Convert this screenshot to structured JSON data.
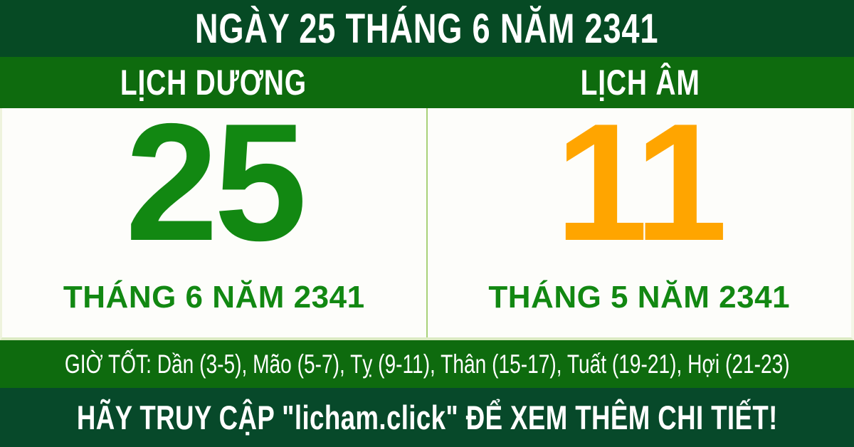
{
  "banner": {
    "title": "NGÀY 25 THÁNG 6 NĂM 2341"
  },
  "calendars": {
    "solar": {
      "header": "LỊCH DƯƠNG",
      "day": "25",
      "month_year": "THÁNG 6 NĂM 2341"
    },
    "lunar": {
      "header": "LỊCH ÂM",
      "day": "11",
      "month_year": "THÁNG 5 NĂM 2341"
    }
  },
  "good_hours": {
    "text": "GIỜ TỐT: Dần (3-5), Mão (5-7), Tỵ (9-11), Thân (15-17), Tuất (19-21), Hợi (21-23)"
  },
  "footer": {
    "text": "HÃY TRUY CẬP \"licham.click\" ĐỂ XEM THÊM CHI TIẾT!"
  },
  "colors": {
    "dark_green": "#064a24",
    "medium_green": "#0e6b0e",
    "day_green": "#128812",
    "day_orange": "#ffa500",
    "divider_light_green": "#a8d178",
    "text_white": "#ffffff"
  }
}
